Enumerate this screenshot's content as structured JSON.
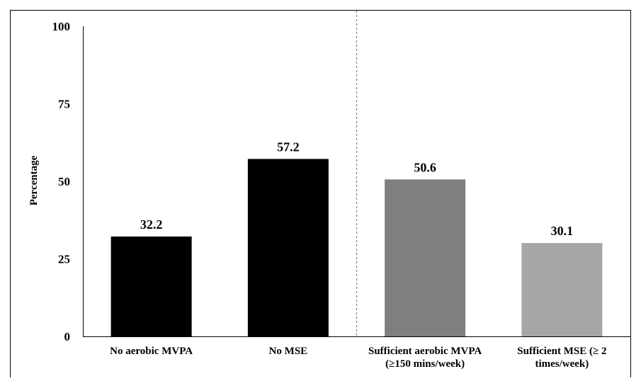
{
  "chart_data": {
    "type": "bar",
    "ylabel": "Percentage",
    "xlabel": "",
    "ylim": [
      0,
      100
    ],
    "yticks": [
      0,
      25,
      50,
      75,
      100
    ],
    "grid": false,
    "categories": [
      [
        "No aerobic MVPA"
      ],
      [
        "No MSE"
      ],
      [
        "Sufficient aerobic MVPA",
        "(≥150 mins/week)"
      ],
      [
        "Sufficient  MSE (≥ 2",
        "times/week)"
      ]
    ],
    "values": [
      32.2,
      57.2,
      50.6,
      30.1
    ],
    "value_labels": [
      "32.2",
      "57.2",
      "50.6",
      "30.1"
    ],
    "colors": [
      "#000000",
      "#000000",
      "#7f7f7f",
      "#a6a6a6"
    ],
    "separator": "dashed vertical line between the 2nd and 3rd categories"
  }
}
